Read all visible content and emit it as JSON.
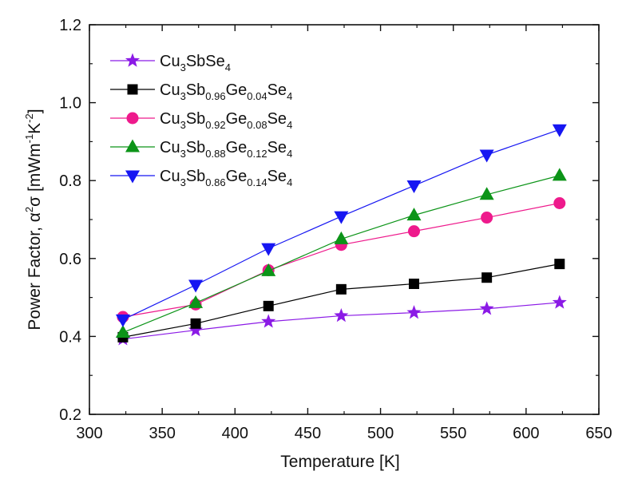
{
  "chart_data": {
    "type": "line",
    "xlabel": "Temperature [K]",
    "ylabel": {
      "prefix": "Power Factor, ",
      "alpha": "α",
      "two": "2",
      "sigma": "σ",
      "unit_open": " [mWm",
      "exp_m": "-1",
      "K": "K",
      "exp_k": "-2",
      "unit_close": "]"
    },
    "xlim": [
      300,
      650
    ],
    "ylim": [
      0.2,
      1.2
    ],
    "xticks": [
      "300",
      "350",
      "400",
      "450",
      "500",
      "550",
      "600",
      "650"
    ],
    "yticks": [
      "0.2",
      "0.4",
      "0.6",
      "0.8",
      "1.0",
      "1.2"
    ],
    "x": [
      323,
      373,
      423,
      473,
      523,
      573,
      623
    ],
    "legend_position": "top-left",
    "grid": false,
    "series": [
      {
        "name": "Cu3SbSe4",
        "name_parts": [
          [
            "Cu",
            false
          ],
          [
            "3",
            true
          ],
          [
            "SbSe",
            false
          ],
          [
            "4",
            true
          ]
        ],
        "marker": "star",
        "color": "#8b1ae6",
        "values": [
          0.393,
          0.416,
          0.438,
          0.453,
          0.461,
          0.471,
          0.487
        ]
      },
      {
        "name": "Cu3Sb0.96Ge0.04Se4",
        "name_parts": [
          [
            "Cu",
            false
          ],
          [
            "3",
            true
          ],
          [
            "Sb",
            false
          ],
          [
            "0.96",
            true
          ],
          [
            "Ge",
            false
          ],
          [
            "0.04",
            true
          ],
          [
            "Se",
            false
          ],
          [
            "4",
            true
          ]
        ],
        "marker": "square",
        "color": "#000000",
        "values": [
          0.398,
          0.433,
          0.478,
          0.521,
          0.535,
          0.551,
          0.586
        ]
      },
      {
        "name": "Cu3Sb0.92Ge0.08Se4",
        "name_parts": [
          [
            "Cu",
            false
          ],
          [
            "3",
            true
          ],
          [
            "Sb",
            false
          ],
          [
            "0.92",
            true
          ],
          [
            "Ge",
            false
          ],
          [
            "0.08",
            true
          ],
          [
            "Se",
            false
          ],
          [
            "4",
            true
          ]
        ],
        "marker": "circle",
        "color": "#ee1a8c",
        "values": [
          0.45,
          0.482,
          0.57,
          0.635,
          0.67,
          0.705,
          0.742
        ]
      },
      {
        "name": "Cu3Sb0.88Ge0.12Se4",
        "name_parts": [
          [
            "Cu",
            false
          ],
          [
            "3",
            true
          ],
          [
            "Sb",
            false
          ],
          [
            "0.88",
            true
          ],
          [
            "Ge",
            false
          ],
          [
            "0.12",
            true
          ],
          [
            "Se",
            false
          ],
          [
            "4",
            true
          ]
        ],
        "marker": "triangle-up",
        "color": "#0c9418",
        "values": [
          0.41,
          0.486,
          0.568,
          0.65,
          0.711,
          0.764,
          0.813
        ]
      },
      {
        "name": "Cu3Sb0.86Ge0.14Se4",
        "name_parts": [
          [
            "Cu",
            false
          ],
          [
            "3",
            true
          ],
          [
            "Sb",
            false
          ],
          [
            "0.86",
            true
          ],
          [
            "Ge",
            false
          ],
          [
            "0.14",
            true
          ],
          [
            "Se",
            false
          ],
          [
            "4",
            true
          ]
        ],
        "marker": "triangle-down",
        "color": "#1616f2",
        "values": [
          0.443,
          0.532,
          0.626,
          0.708,
          0.787,
          0.866,
          0.931
        ]
      }
    ]
  }
}
